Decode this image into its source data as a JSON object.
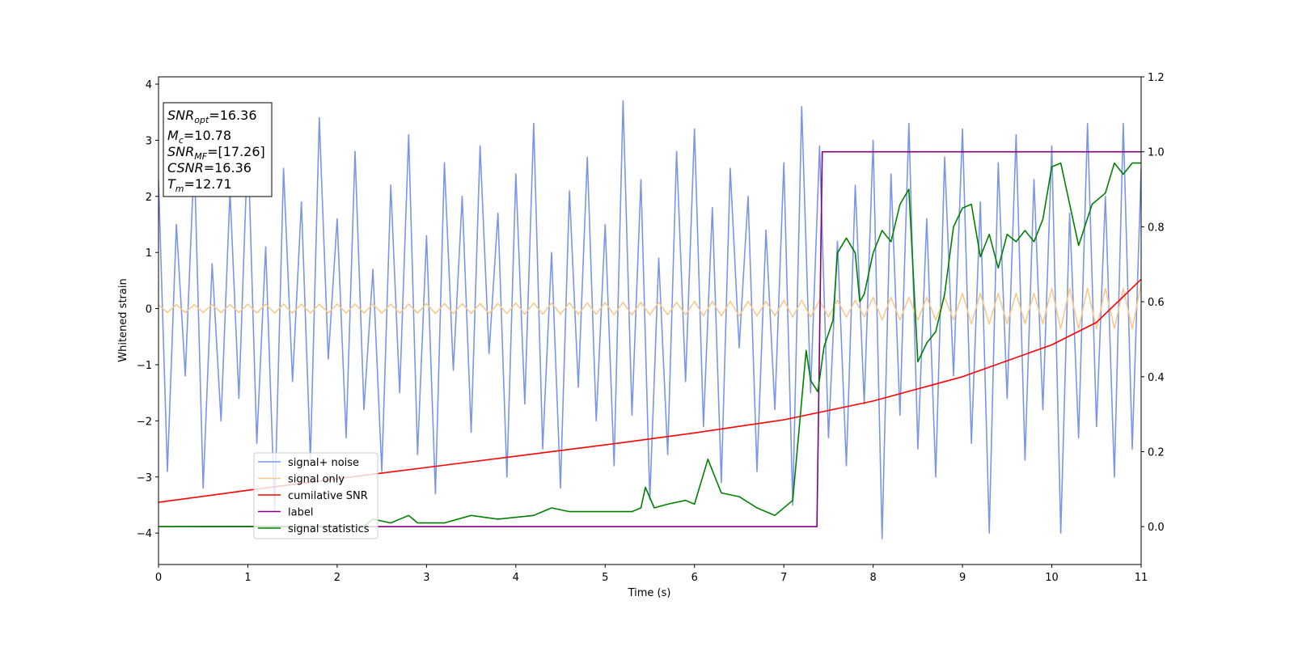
{
  "chart_data": {
    "type": "line",
    "xlabel": "Time (s)",
    "ylabel": "Whitened strain",
    "xlim": [
      0,
      11
    ],
    "ylim": [
      -4.56,
      4.13
    ],
    "y2lim": [
      -0.101,
      1.2
    ],
    "xticks": [
      0,
      1,
      2,
      3,
      4,
      5,
      6,
      7,
      8,
      9,
      10,
      11
    ],
    "yticks": [
      {
        "value": -4,
        "label": "−4"
      },
      {
        "value": -3,
        "label": "−3"
      },
      {
        "value": -2,
        "label": "−2"
      },
      {
        "value": -1,
        "label": "−1"
      },
      0,
      1,
      2,
      3,
      4
    ],
    "y2ticks": [
      {
        "value": 0,
        "label": "0.0"
      },
      0.2,
      0.4,
      0.6,
      0.8,
      {
        "value": 1,
        "label": "1.0"
      },
      1.2
    ],
    "legend_loc": "lower left",
    "annotation": [
      {
        "text": "SNR",
        "sub": "opt",
        "value": "=16.36"
      },
      {
        "text": "M",
        "sub": "c",
        "value": "=10.78"
      },
      {
        "text": "SNR",
        "sub": "MF",
        "value": "=[17.26]"
      },
      {
        "text": "CSNR",
        "value": "=16.36"
      },
      {
        "text": "T",
        "sub": "m",
        "value": "=12.71"
      }
    ],
    "x": [
      0,
      0.1,
      0.2,
      0.3,
      0.4,
      0.5,
      0.6,
      0.7,
      0.8,
      0.9,
      1,
      1.1,
      1.2,
      1.3,
      1.4,
      1.5,
      1.6,
      1.7,
      1.8,
      1.9,
      2,
      2.1,
      2.2,
      2.3,
      2.4,
      2.5,
      2.6,
      2.7,
      2.8,
      2.9,
      3,
      3.1,
      3.2,
      3.3,
      3.4,
      3.5,
      3.6,
      3.7,
      3.8,
      3.9,
      4,
      4.1,
      4.2,
      4.3,
      4.4,
      4.5,
      4.6,
      4.7,
      4.8,
      4.9,
      5,
      5.1,
      5.2,
      5.3,
      5.4,
      5.5,
      5.6,
      5.7,
      5.8,
      5.9,
      6,
      6.1,
      6.2,
      6.3,
      6.4,
      6.5,
      6.6,
      6.7,
      6.8,
      6.9,
      7,
      7.1,
      7.2,
      7.3,
      7.4,
      7.5,
      7.6,
      7.7,
      7.8,
      7.9,
      8,
      8.1,
      8.2,
      8.3,
      8.4,
      8.5,
      8.6,
      8.7,
      8.8,
      8.9,
      9,
      9.1,
      9.2,
      9.3,
      9.4,
      9.5,
      9.6,
      9.7,
      9.8,
      9.9,
      10,
      10.1,
      10.2,
      10.3,
      10.4,
      10.5,
      10.6,
      10.7,
      10.8,
      10.9,
      11
    ],
    "series": [
      {
        "name": "signal+ noise",
        "color": "#7b96e8",
        "axis": "y",
        "values": [
          2.3,
          -2.9,
          1.5,
          -1.2,
          2.7,
          -3.2,
          0.8,
          -2.0,
          2.1,
          -1.6,
          3.0,
          -2.4,
          1.1,
          -3.6,
          2.5,
          -1.3,
          1.9,
          -2.7,
          3.4,
          -0.9,
          1.6,
          -2.3,
          2.8,
          -1.8,
          0.7,
          -2.9,
          2.2,
          -1.5,
          3.1,
          -2.6,
          1.3,
          -3.3,
          2.6,
          -1.1,
          2.0,
          -2.2,
          2.9,
          -0.8,
          1.7,
          -3.0,
          2.4,
          -1.7,
          3.3,
          -2.5,
          1.0,
          -3.2,
          2.1,
          -1.4,
          2.7,
          -2.0,
          1.5,
          -2.8,
          3.7,
          -1.9,
          2.3,
          -3.4,
          0.9,
          -2.6,
          2.8,
          -1.3,
          3.2,
          -2.1,
          1.8,
          -3.1,
          2.5,
          -0.7,
          2.0,
          -2.9,
          1.4,
          -1.8,
          2.6,
          -3.5,
          3.6,
          -1.5,
          2.9,
          -2.3,
          1.2,
          -2.8,
          2.2,
          -1.7,
          3.0,
          -4.1,
          2.4,
          -1.9,
          3.3,
          -2.5,
          1.6,
          -3.0,
          2.7,
          -1.2,
          3.2,
          -2.4,
          1.9,
          -4.0,
          2.6,
          -1.6,
          3.1,
          -2.7,
          2.3,
          -1.8,
          2.9,
          -4.0,
          1.7,
          -2.3,
          3.3,
          -2.1,
          2.0,
          -3.0,
          3.3,
          -2.5,
          2.5
        ]
      },
      {
        "name": "signal only",
        "color": "#f7c98a",
        "axis": "y",
        "values": [
          0.07,
          -0.07,
          0.07,
          -0.07,
          0.07,
          -0.07,
          0.07,
          -0.07,
          0.07,
          -0.07,
          0.08,
          -0.08,
          0.08,
          -0.08,
          0.08,
          -0.08,
          0.08,
          -0.08,
          0.08,
          -0.08,
          0.08,
          -0.08,
          0.08,
          -0.08,
          0.08,
          -0.08,
          0.08,
          -0.08,
          0.08,
          -0.08,
          0.09,
          -0.09,
          0.09,
          -0.09,
          0.09,
          -0.09,
          0.09,
          -0.09,
          0.09,
          -0.09,
          0.1,
          -0.1,
          0.1,
          -0.1,
          0.1,
          -0.1,
          0.1,
          -0.1,
          0.1,
          -0.1,
          0.11,
          -0.11,
          0.11,
          -0.11,
          0.11,
          -0.11,
          0.11,
          -0.11,
          0.11,
          -0.11,
          0.13,
          -0.13,
          0.13,
          -0.13,
          0.13,
          -0.13,
          0.13,
          -0.13,
          0.13,
          -0.13,
          0.15,
          -0.15,
          0.15,
          -0.15,
          0.15,
          -0.15,
          0.15,
          -0.15,
          0.15,
          -0.15,
          0.2,
          -0.2,
          0.2,
          -0.2,
          0.2,
          -0.2,
          0.2,
          -0.2,
          0.2,
          -0.2,
          0.27,
          -0.27,
          0.27,
          -0.27,
          0.27,
          -0.27,
          0.27,
          -0.27,
          0.27,
          -0.27,
          0.36,
          -0.36,
          0.36,
          -0.36,
          0.36,
          -0.36,
          0.36,
          -0.36,
          0.36,
          -0.36,
          0.45
        ]
      },
      {
        "name": "cumilative SNR",
        "color": "#ff0000",
        "axis": "y2",
        "x": [
          0,
          1,
          2,
          3,
          4,
          5,
          6,
          7,
          8,
          9,
          10,
          10.5,
          11
        ],
        "values": [
          0.065,
          0.097,
          0.128,
          0.158,
          0.188,
          0.218,
          0.25,
          0.285,
          0.335,
          0.4,
          0.485,
          0.545,
          0.66
        ]
      },
      {
        "name": "label",
        "color": "#800080",
        "axis": "y2",
        "x": [
          0,
          7.37,
          7.43,
          11
        ],
        "values": [
          0,
          0,
          1,
          1
        ]
      },
      {
        "name": "signal statistics",
        "color": "#008000",
        "axis": "y2",
        "x": [
          0,
          2.3,
          2.4,
          2.6,
          2.8,
          2.9,
          3.2,
          3.5,
          3.8,
          4.2,
          4.4,
          4.6,
          5.0,
          5.3,
          5.4,
          5.45,
          5.55,
          5.7,
          5.9,
          6.0,
          6.15,
          6.3,
          6.5,
          6.7,
          6.9,
          7.1,
          7.25,
          7.3,
          7.38,
          7.45,
          7.55,
          7.6,
          7.7,
          7.8,
          7.85,
          7.9,
          8.0,
          8.1,
          8.2,
          8.3,
          8.4,
          8.5,
          8.6,
          8.7,
          8.8,
          8.9,
          9.0,
          9.1,
          9.2,
          9.3,
          9.4,
          9.5,
          9.6,
          9.7,
          9.8,
          9.9,
          10.0,
          10.1,
          10.3,
          10.45,
          10.6,
          10.7,
          10.8,
          10.9,
          11
        ],
        "values": [
          0,
          0.001,
          0.02,
          0.01,
          0.03,
          0.01,
          0.01,
          0.03,
          0.02,
          0.03,
          0.05,
          0.04,
          0.04,
          0.04,
          0.05,
          0.105,
          0.05,
          0.06,
          0.07,
          0.06,
          0.18,
          0.09,
          0.08,
          0.05,
          0.03,
          0.07,
          0.47,
          0.39,
          0.36,
          0.48,
          0.55,
          0.73,
          0.77,
          0.73,
          0.6,
          0.62,
          0.73,
          0.79,
          0.76,
          0.86,
          0.9,
          0.44,
          0.49,
          0.52,
          0.62,
          0.8,
          0.85,
          0.86,
          0.72,
          0.78,
          0.69,
          0.78,
          0.76,
          0.79,
          0.76,
          0.82,
          0.96,
          0.97,
          0.75,
          0.86,
          0.89,
          0.97,
          0.94,
          0.97,
          0.97
        ]
      }
    ]
  }
}
